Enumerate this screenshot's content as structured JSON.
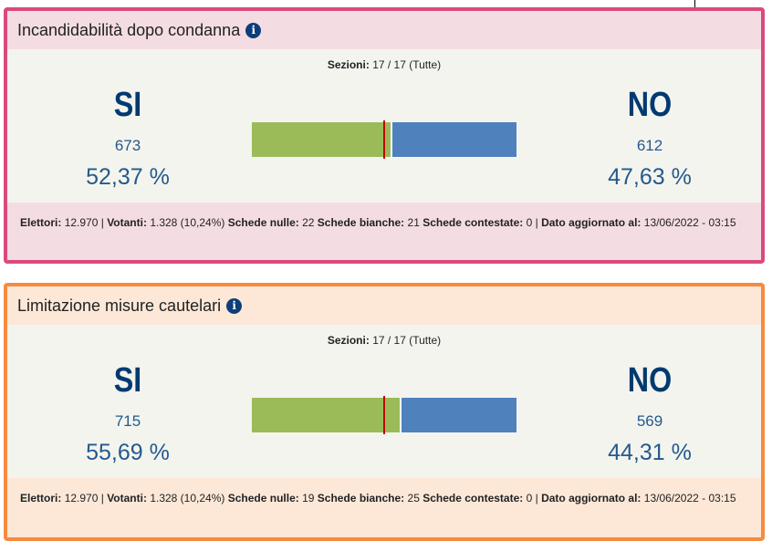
{
  "cards": [
    {
      "title": "Incandidabilità dopo condanna",
      "sections_label": "Sezioni:",
      "sections_value": "17 / 17 (Tutte)",
      "yes": {
        "label": "SI",
        "votes": "673",
        "percent": "52,37 %",
        "fraction": 0.5237
      },
      "no": {
        "label": "NO",
        "votes": "612",
        "percent": "47,63 %"
      },
      "footer": {
        "elettori_label": "Elettori:",
        "elettori": "12.970 |",
        "votanti_label": "Votanti:",
        "votanti": "1.328 (10,24%)",
        "nulle_label": "Schede nulle:",
        "nulle": "22",
        "bianche_label": "Schede bianche:",
        "bianche": "21",
        "contestate_label": "Schede contestate:",
        "contestate": "0 |",
        "agg_label": "Dato aggiornato al:",
        "agg": "13/06/2022 - 03:15"
      }
    },
    {
      "title": "Limitazione misure cautelari",
      "sections_label": "Sezioni:",
      "sections_value": "17 / 17 (Tutte)",
      "yes": {
        "label": "SI",
        "votes": "715",
        "percent": "55,69 %",
        "fraction": 0.5569
      },
      "no": {
        "label": "NO",
        "votes": "569",
        "percent": "44,31 %"
      },
      "footer": {
        "elettori_label": "Elettori:",
        "elettori": "12.970 |",
        "votanti_label": "Votanti:",
        "votanti": "1.328 (10,24%)",
        "nulle_label": "Schede nulle:",
        "nulle": "19",
        "bianche_label": "Schede bianche:",
        "bianche": "25",
        "contestate_label": "Schede contestate:",
        "contestate": "0 |",
        "agg_label": "Dato aggiornato al:",
        "agg": "13/06/2022 - 03:15"
      }
    }
  ],
  "colors": {
    "yes": "#9bbb59",
    "no": "#4f81bd",
    "threshold": "#c00000"
  }
}
